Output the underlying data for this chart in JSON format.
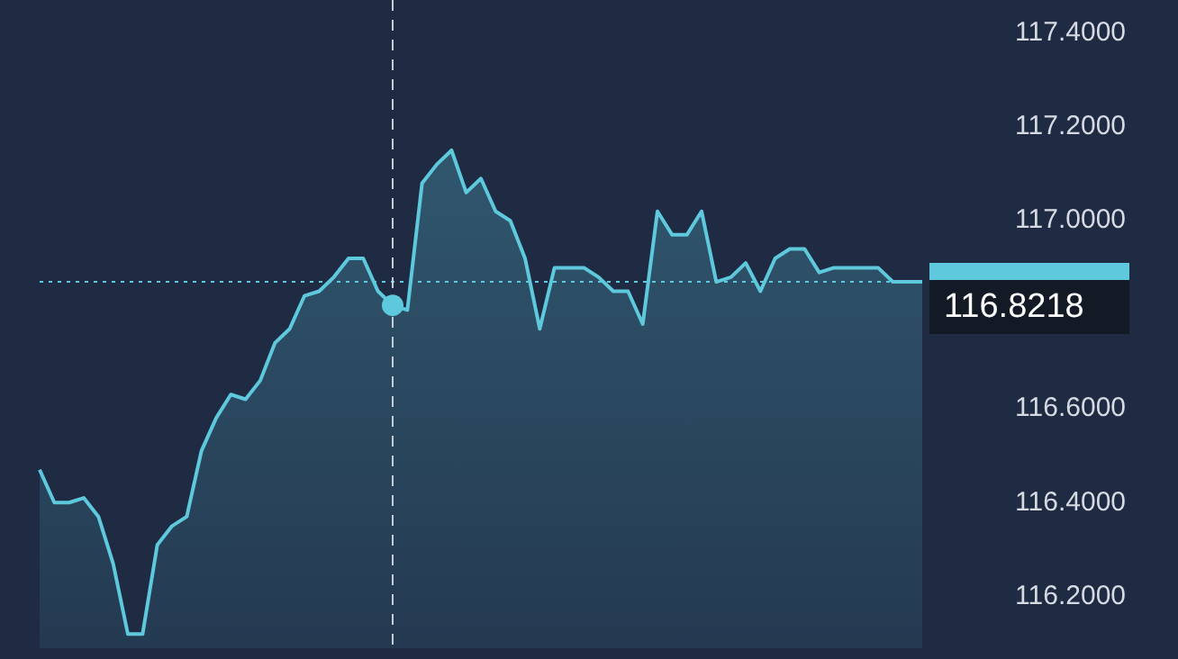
{
  "chart_data": {
    "type": "area",
    "categories": [
      null,
      null,
      null,
      null,
      null,
      null,
      null,
      null,
      null,
      null,
      null,
      null,
      null,
      null,
      null,
      null,
      null,
      null,
      null,
      null,
      null,
      null,
      null,
      null,
      null,
      null,
      null,
      null,
      null,
      null,
      null,
      null,
      null,
      null,
      null,
      null,
      null,
      null,
      null,
      null,
      null,
      null,
      null,
      null,
      null,
      null,
      null,
      null,
      null,
      null,
      null,
      null,
      null,
      null,
      null,
      null,
      null,
      null,
      null,
      null,
      null
    ],
    "series": [
      {
        "color": "#5ec8dc",
        "values": [
          116.47,
          116.4,
          116.4,
          116.41,
          116.37,
          116.27,
          116.12,
          116.12,
          116.31,
          116.35,
          116.37,
          116.51,
          116.58,
          116.63,
          116.62,
          116.66,
          116.74,
          116.77,
          116.84,
          116.85,
          116.88,
          116.92,
          116.92,
          116.85,
          116.82,
          116.81,
          117.08,
          117.12,
          117.15,
          117.06,
          117.09,
          117.02,
          117.0,
          116.92,
          116.77,
          116.9,
          116.9,
          116.9,
          116.88,
          116.85,
          116.85,
          116.78,
          117.02,
          116.97,
          116.97,
          117.02,
          116.87,
          116.88,
          116.91,
          116.85,
          116.92,
          116.94,
          116.94,
          116.89,
          116.9,
          116.9,
          116.9,
          116.9,
          116.87,
          116.87,
          116.87
        ]
      }
    ],
    "ylim": [
      116.09,
      117.47
    ],
    "yticks": [
      {
        "value": 116.2,
        "label": "116.2000"
      },
      {
        "value": 116.4,
        "label": "116.4000"
      },
      {
        "value": 116.6,
        "label": "116.6000"
      },
      {
        "value": 117.0,
        "label": "117.0000"
      },
      {
        "value": 117.2,
        "label": "117.2000"
      },
      {
        "value": 117.4,
        "label": "117.4000"
      }
    ],
    "tick_labels": "y",
    "grid": false,
    "legend": false,
    "marker": "none",
    "line_style": "solid",
    "ref_lines": [
      {
        "axis": "y",
        "value": 116.87,
        "color": "#5ec8dc",
        "line_style": "dotted"
      }
    ],
    "annotations": [
      "116.8218"
    ]
  }
}
